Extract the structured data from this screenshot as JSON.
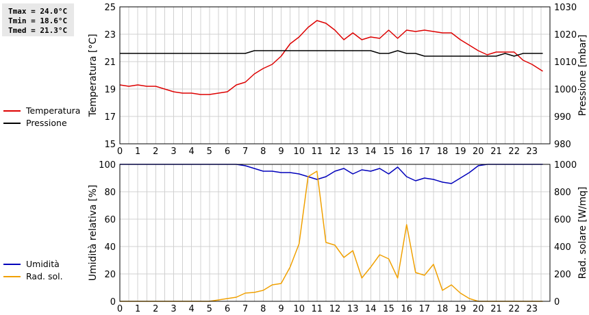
{
  "stats": {
    "tmax": "Tmax = 24.0°C",
    "tmin": "Tmin = 18.6°C",
    "tmed": "Tmed = 21.3°C"
  },
  "chart_data": [
    {
      "type": "line",
      "title": "",
      "xlabel": "",
      "ylabel": "Temperatura [°C]",
      "ylabel_right": "Pressione [mbar]",
      "xlim": [
        0,
        24
      ],
      "ylim": [
        15,
        25
      ],
      "ylim_right": [
        980,
        1030
      ],
      "x_ticks": [
        0,
        1,
        2,
        3,
        4,
        5,
        6,
        7,
        8,
        9,
        10,
        11,
        12,
        13,
        14,
        15,
        16,
        17,
        18,
        19,
        20,
        21,
        22,
        23
      ],
      "y_ticks": [
        15,
        17,
        19,
        21,
        23,
        25
      ],
      "y_ticks_right": [
        980,
        990,
        1000,
        1010,
        1020,
        1030
      ],
      "grid": true,
      "legend_position": "left",
      "series": [
        {
          "name": "Temperatura",
          "color": "#dd0000",
          "axis": "left",
          "x": [
            0,
            0.5,
            1,
            1.5,
            2,
            2.5,
            3,
            3.5,
            4,
            4.5,
            5,
            5.5,
            6,
            6.5,
            7,
            7.5,
            8,
            8.5,
            9,
            9.5,
            10,
            10.5,
            11,
            11.5,
            12,
            12.5,
            13,
            13.5,
            14,
            14.5,
            15,
            15.5,
            16,
            16.5,
            17,
            17.5,
            18,
            18.5,
            19,
            19.5,
            20,
            20.5,
            21,
            21.5,
            22,
            22.5,
            23,
            23.6
          ],
          "values": [
            19.3,
            19.2,
            19.3,
            19.2,
            19.2,
            19.0,
            18.8,
            18.7,
            18.7,
            18.6,
            18.6,
            18.7,
            18.8,
            19.3,
            19.5,
            20.1,
            20.5,
            20.8,
            21.4,
            22.3,
            22.8,
            23.5,
            24.0,
            23.8,
            23.3,
            22.6,
            23.1,
            22.6,
            22.8,
            22.7,
            23.3,
            22.7,
            23.3,
            23.2,
            23.3,
            23.2,
            23.1,
            23.1,
            22.6,
            22.2,
            21.8,
            21.5,
            21.7,
            21.7,
            21.7,
            21.1,
            20.8,
            20.3
          ]
        },
        {
          "name": "Pressione",
          "color": "#000000",
          "axis": "right",
          "x": [
            0,
            1,
            2,
            3,
            4,
            5,
            6,
            7,
            7.5,
            8,
            9,
            10,
            11,
            12,
            13,
            14,
            14.5,
            15,
            15.5,
            16,
            16.5,
            17,
            18,
            19,
            20,
            21,
            21.5,
            22,
            22.5,
            23,
            23.6
          ],
          "values": [
            1013,
            1013,
            1013,
            1013,
            1013,
            1013,
            1013,
            1013,
            1014,
            1014,
            1014,
            1014,
            1014,
            1014,
            1014,
            1014,
            1013,
            1013,
            1014,
            1013,
            1013,
            1012,
            1012,
            1012,
            1012,
            1012,
            1013,
            1012,
            1013,
            1013,
            1013
          ]
        }
      ]
    },
    {
      "type": "line",
      "title": "",
      "xlabel": "",
      "ylabel": "Umidità relativa [%]",
      "ylabel_right": "Rad. solare [W/mq]",
      "xlim": [
        0,
        24
      ],
      "ylim": [
        0,
        100
      ],
      "ylim_right": [
        0,
        1000
      ],
      "x_ticks": [
        0,
        1,
        2,
        3,
        4,
        5,
        6,
        7,
        8,
        9,
        10,
        11,
        12,
        13,
        14,
        15,
        16,
        17,
        18,
        19,
        20,
        21,
        22,
        23
      ],
      "y_ticks": [
        0,
        20,
        40,
        60,
        80,
        100
      ],
      "y_ticks_right": [
        0,
        200,
        400,
        600,
        800,
        1000
      ],
      "grid": true,
      "legend_position": "left",
      "series": [
        {
          "name": "Umidità",
          "color": "#0000bb",
          "axis": "left",
          "x": [
            0,
            1,
            2,
            3,
            4,
            5,
            6,
            6.5,
            7,
            7.5,
            8,
            8.5,
            9,
            9.5,
            10,
            10.5,
            11,
            11.5,
            12,
            12.5,
            13,
            13.5,
            14,
            14.5,
            15,
            15.5,
            16,
            16.5,
            17,
            17.5,
            18,
            18.5,
            19,
            19.5,
            20,
            20.5,
            21,
            22,
            23,
            23.6
          ],
          "values": [
            100,
            100,
            100,
            100,
            100,
            100,
            100,
            100,
            99,
            97,
            95,
            95,
            94,
            94,
            93,
            91,
            89,
            91,
            95,
            97,
            93,
            96,
            95,
            97,
            93,
            98,
            91,
            88,
            90,
            89,
            87,
            86,
            90,
            94,
            99,
            100,
            100,
            100,
            100,
            100
          ]
        },
        {
          "name": "Rad. sol.",
          "color": "#f0a000",
          "axis": "right",
          "x": [
            0,
            1,
            2,
            3,
            4,
            5,
            5.5,
            6,
            6.5,
            7,
            7.5,
            8,
            8.5,
            9,
            9.5,
            10,
            10.5,
            11,
            11.5,
            12,
            12.5,
            13,
            13.5,
            14,
            14.5,
            15,
            15.5,
            16,
            16.5,
            17,
            17.5,
            18,
            18.5,
            19,
            19.5,
            20,
            21,
            22,
            23,
            23.6
          ],
          "values": [
            0,
            0,
            0,
            0,
            0,
            0,
            10,
            20,
            30,
            60,
            65,
            80,
            120,
            130,
            250,
            420,
            910,
            950,
            430,
            410,
            320,
            370,
            170,
            250,
            340,
            310,
            170,
            560,
            210,
            190,
            270,
            80,
            120,
            60,
            20,
            0,
            0,
            0,
            0,
            0
          ]
        }
      ]
    }
  ]
}
